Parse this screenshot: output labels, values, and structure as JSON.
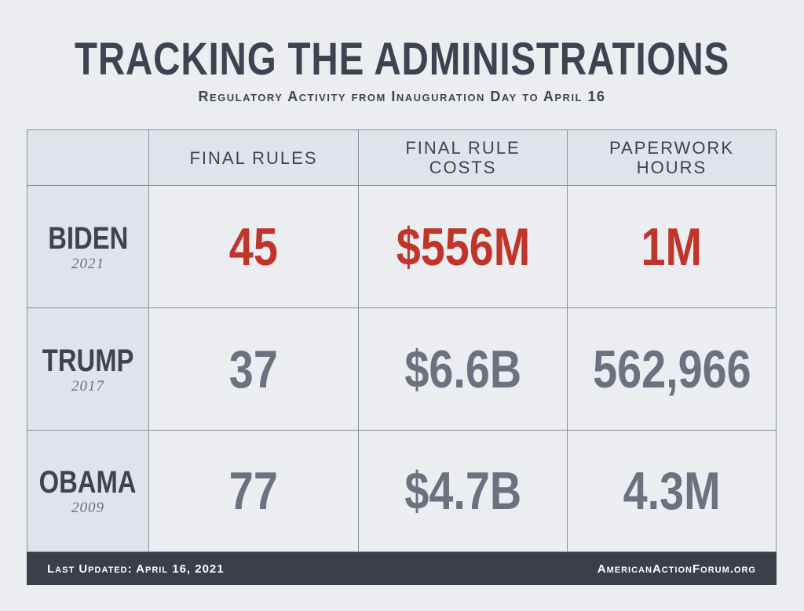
{
  "title": "TRACKING THE ADMINISTRATIONS",
  "subtitle": "Regulatory Activity from Inauguration Day to April 16",
  "footer": {
    "updated": "Last Updated: April 16, 2021",
    "source": "AmericanActionForum.org"
  },
  "colors": {
    "highlight": "#c0342a",
    "value": "#6b717f",
    "text": "#3d4350",
    "footer_bg": "#3a3f49"
  },
  "chart_data": {
    "type": "table",
    "columns": [
      "FINAL RULES",
      "FINAL RULE COSTS",
      "PAPERWORK HOURS"
    ],
    "rows": [
      {
        "name": "BIDEN",
        "year": "2021",
        "values": [
          "45",
          "$556M",
          "1M"
        ],
        "highlight": true
      },
      {
        "name": "TRUMP",
        "year": "2017",
        "values": [
          "37",
          "$6.6B",
          "562,966"
        ],
        "highlight": false
      },
      {
        "name": "OBAMA",
        "year": "2009",
        "values": [
          "77",
          "$4.7B",
          "4.3M"
        ],
        "highlight": false
      }
    ]
  }
}
